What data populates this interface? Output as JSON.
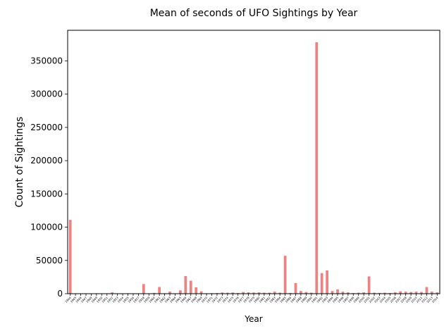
{
  "chart_data": {
    "type": "bar",
    "title": "Mean of seconds of UFO Sightings by Year",
    "xlabel": "Year",
    "ylabel": "Count of Sightings",
    "ylim": [
      0,
      396000
    ],
    "yticks": [
      0,
      50000,
      100000,
      150000,
      200000,
      250000,
      300000,
      350000
    ],
    "bar_color": "#ec8282",
    "grid": false,
    "categories": [
      "1944",
      "1945",
      "1946",
      "1947",
      "1948",
      "1949",
      "1950",
      "1951",
      "1952",
      "1953",
      "1954",
      "1955",
      "1956",
      "1957",
      "1958",
      "1959",
      "1960",
      "1961",
      "1962",
      "1963",
      "1964",
      "1965",
      "1966",
      "1967",
      "1968",
      "1969",
      "1970",
      "1971",
      "1972",
      "1973",
      "1974",
      "1975",
      "1976",
      "1977",
      "1978",
      "1979",
      "1980",
      "1981",
      "1982",
      "1983",
      "1984",
      "1985",
      "1986",
      "1987",
      "1988",
      "1989",
      "1990",
      "1991",
      "1992",
      "1993",
      "1994",
      "1995",
      "1996",
      "1997",
      "1998",
      "1999",
      "2000",
      "2001",
      "2002",
      "2003",
      "2004",
      "2005",
      "2006",
      "2007",
      "2008",
      "2009",
      "2010",
      "2011",
      "2012",
      "2013",
      "2014"
    ],
    "values": [
      111000,
      400,
      300,
      500,
      400,
      600,
      300,
      500,
      2000,
      500,
      300,
      600,
      300,
      400,
      14500,
      500,
      1200,
      10000,
      600,
      3000,
      500,
      5000,
      26500,
      19500,
      9500,
      3500,
      600,
      800,
      1000,
      1800,
      1500,
      1800,
      1000,
      2500,
      2000,
      1800,
      2000,
      1500,
      1500,
      3000,
      1500,
      57000,
      1200,
      16000,
      4000,
      2500,
      1500,
      378000,
      31000,
      35000,
      4000,
      6500,
      3000,
      2000,
      1000,
      1500,
      2000,
      26000,
      1500,
      1200,
      1500,
      1000,
      2000,
      3500,
      3000,
      2500,
      3000,
      2500,
      10000,
      3000,
      2000
    ]
  }
}
